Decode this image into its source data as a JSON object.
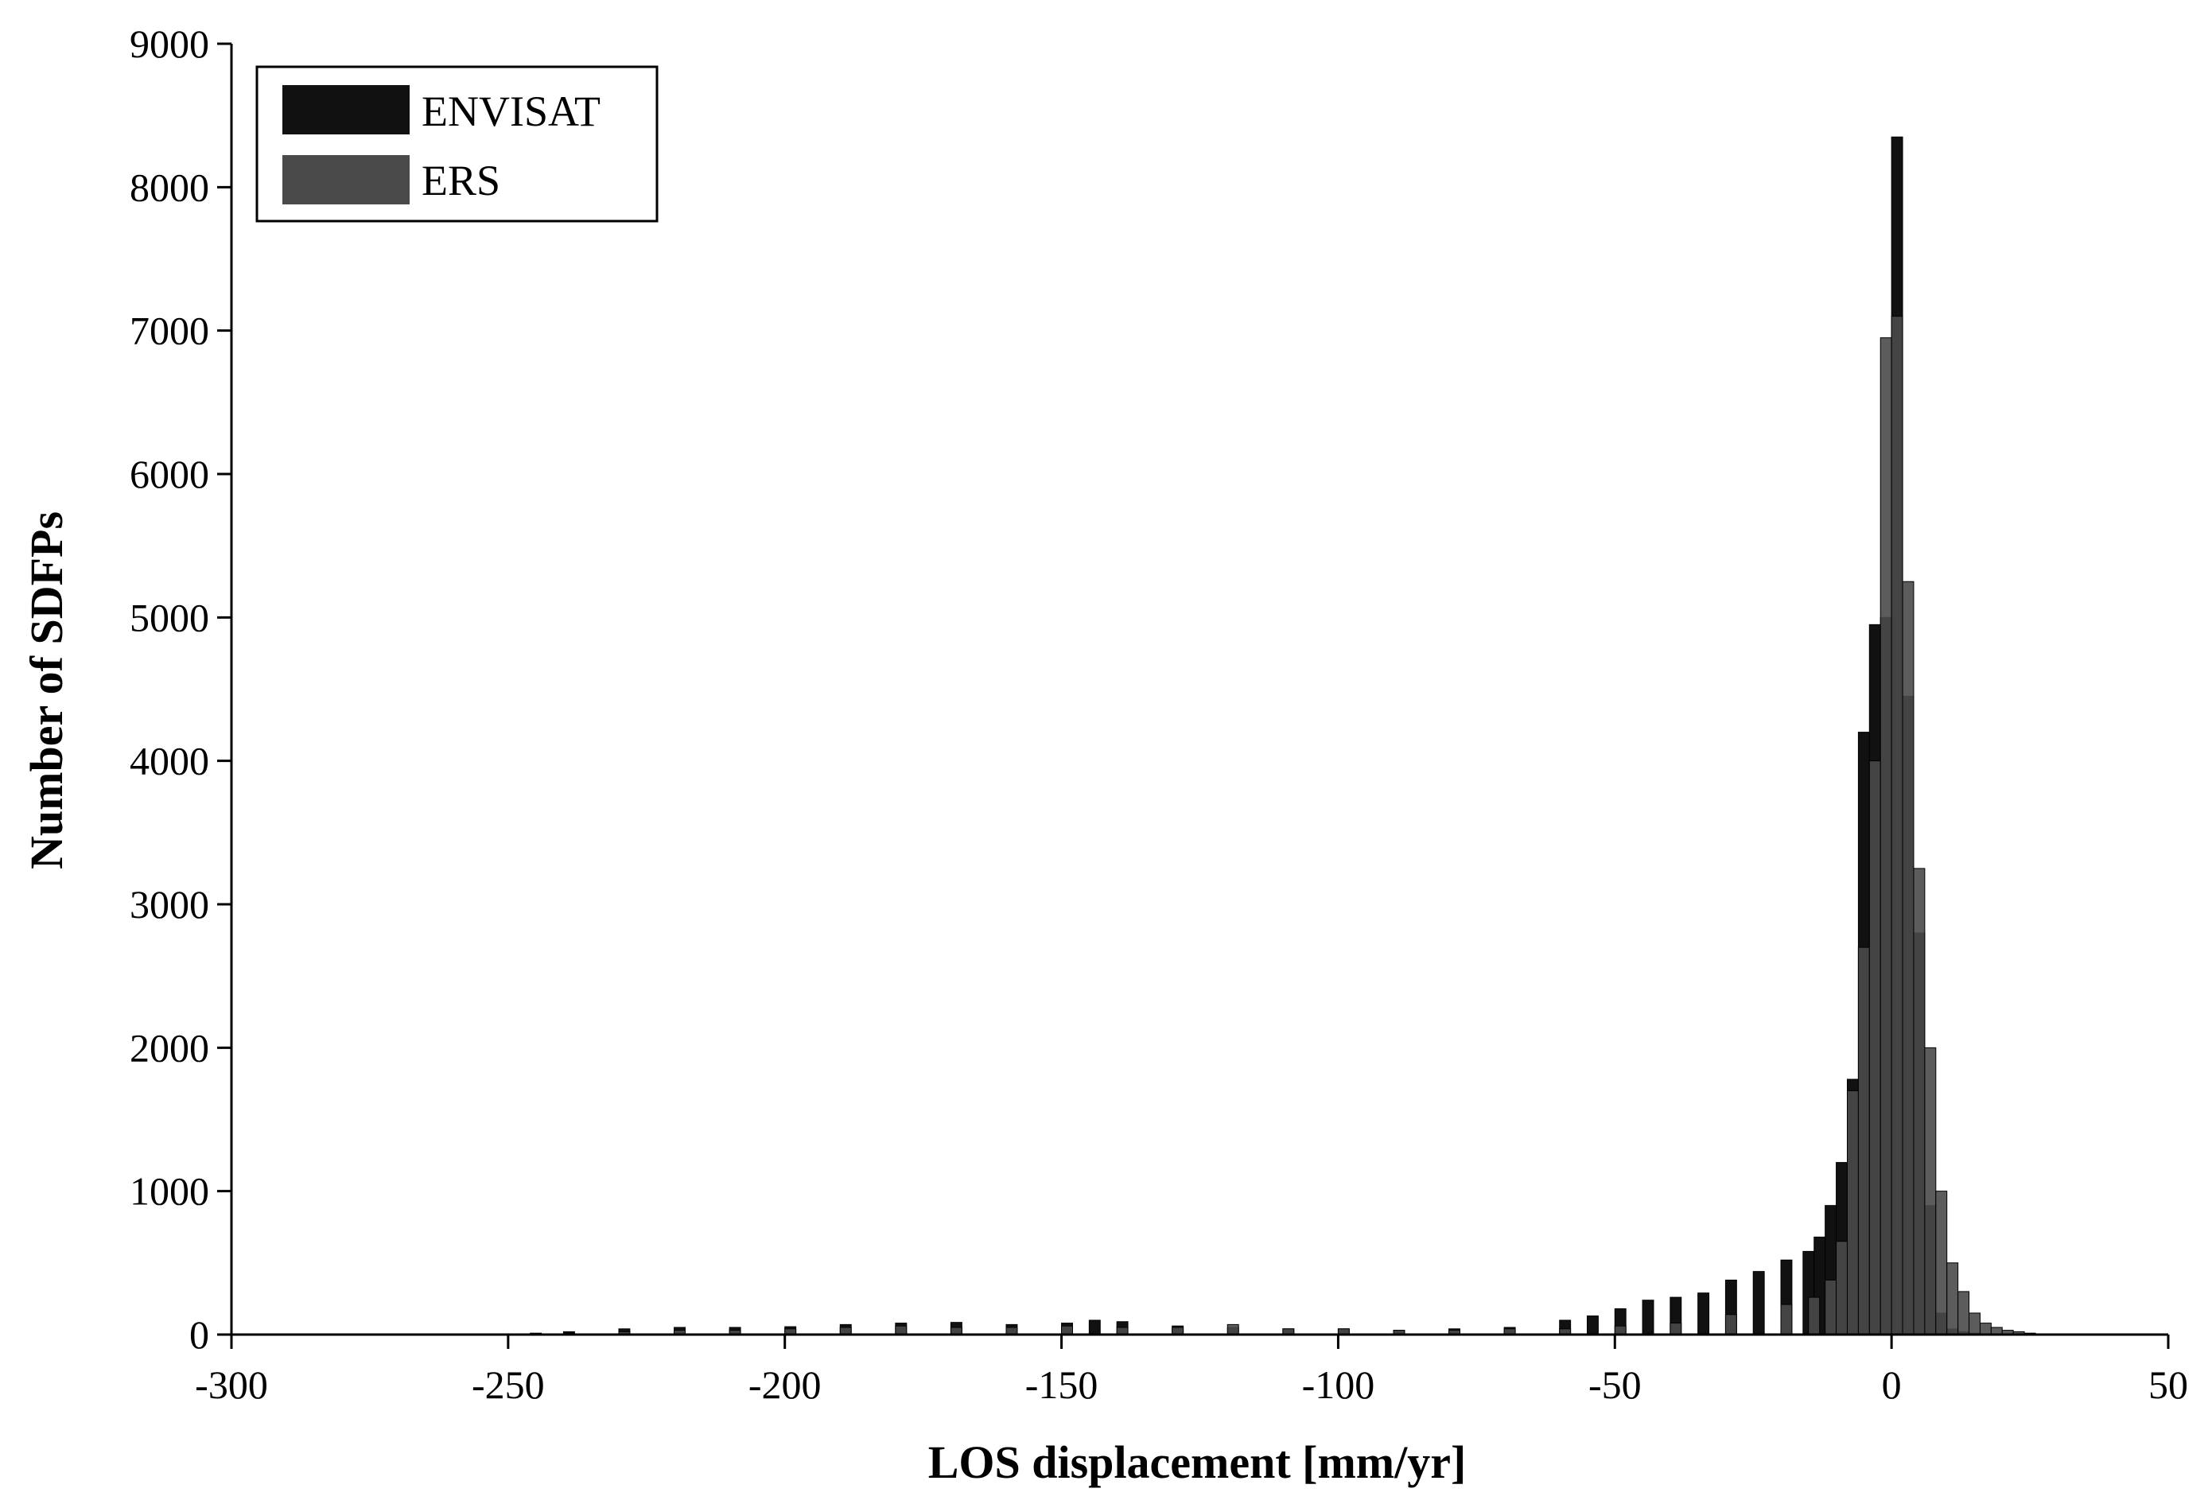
{
  "chart_data": {
    "type": "bar",
    "title": "",
    "xlabel": "LOS displacement [mm/yr]",
    "ylabel": "Number of SDFPs",
    "xlim": [
      -300,
      50
    ],
    "ylim": [
      0,
      9000
    ],
    "xticks": [
      -300,
      -250,
      -200,
      -150,
      -100,
      -50,
      0,
      50
    ],
    "yticks": [
      0,
      1000,
      2000,
      3000,
      4000,
      5000,
      6000,
      7000,
      8000,
      9000
    ],
    "grid": false,
    "legend_position": "top-left",
    "bin_width": 2,
    "colors": {
      "ENVISAT": "#111111",
      "ERS": "#4a4a4a"
    },
    "series": [
      {
        "name": "ENVISAT",
        "x": [
          -246,
          -240,
          -230,
          -220,
          -210,
          -200,
          -190,
          -180,
          -170,
          -160,
          -150,
          -145,
          -140,
          -130,
          -120,
          -110,
          -100,
          -90,
          -80,
          -70,
          -60,
          -55,
          -50,
          -45,
          -40,
          -35,
          -30,
          -25,
          -20,
          -16,
          -14,
          -12,
          -10,
          -8,
          -6,
          -4,
          -2,
          0,
          2,
          4,
          6,
          8,
          10,
          12,
          14,
          16
        ],
        "values": [
          10,
          20,
          40,
          50,
          50,
          55,
          70,
          80,
          85,
          70,
          80,
          100,
          90,
          60,
          50,
          40,
          40,
          30,
          40,
          50,
          100,
          130,
          180,
          240,
          260,
          290,
          380,
          440,
          520,
          580,
          680,
          900,
          1200,
          1780,
          4200,
          4950,
          5000,
          8350,
          4450,
          2800,
          900,
          150,
          40,
          20,
          10,
          5
        ]
      },
      {
        "name": "ERS",
        "x": [
          -240,
          -230,
          -220,
          -210,
          -200,
          -190,
          -180,
          -170,
          -160,
          -150,
          -140,
          -130,
          -120,
          -110,
          -100,
          -90,
          -80,
          -70,
          -60,
          -50,
          -40,
          -30,
          -20,
          -15,
          -12,
          -10,
          -8,
          -6,
          -4,
          -2,
          0,
          2,
          4,
          6,
          8,
          10,
          12,
          14,
          16,
          18,
          20,
          22,
          24
        ],
        "values": [
          10,
          20,
          30,
          30,
          40,
          50,
          60,
          50,
          50,
          60,
          50,
          50,
          70,
          40,
          40,
          30,
          30,
          40,
          40,
          60,
          80,
          140,
          210,
          260,
          380,
          650,
          1700,
          2700,
          4000,
          6950,
          7100,
          5250,
          3250,
          2000,
          1000,
          500,
          300,
          150,
          80,
          50,
          30,
          20,
          10
        ]
      }
    ]
  }
}
